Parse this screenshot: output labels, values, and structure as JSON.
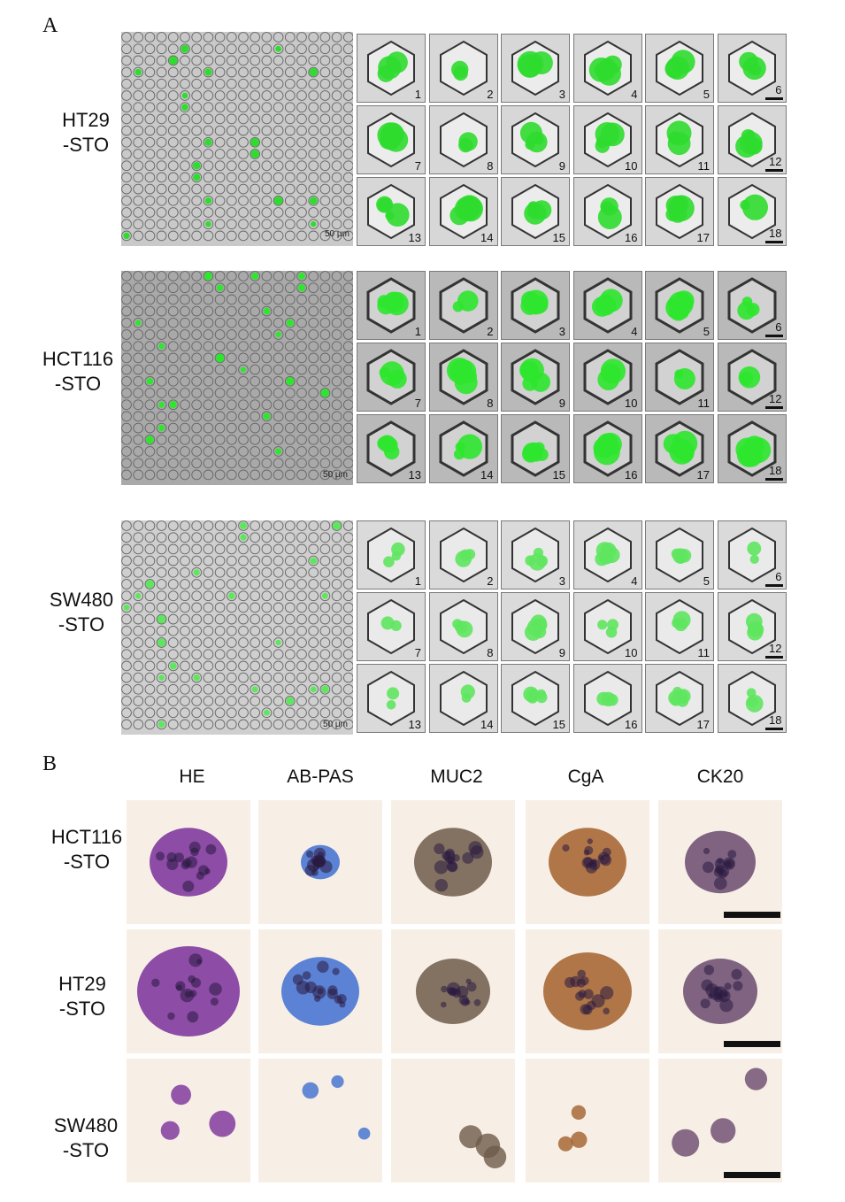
{
  "panel_a": {
    "letter": "A",
    "rows": [
      {
        "label": "HT29\n-STO",
        "scale": "50 μm",
        "tiles": [
          "1",
          "2",
          "3",
          "4",
          "5",
          "6",
          "7",
          "8",
          "9",
          "10",
          "11",
          "12",
          "13",
          "14",
          "15",
          "16",
          "17",
          "18"
        ],
        "bg": "#c9c9c9",
        "stain": "#2fdc2f"
      },
      {
        "label": "HCT116\n-STO",
        "scale": "50 μm",
        "tiles": [
          "1",
          "2",
          "3",
          "4",
          "5",
          "6",
          "7",
          "8",
          "9",
          "10",
          "11",
          "12",
          "13",
          "14",
          "15",
          "16",
          "17",
          "18"
        ],
        "bg": "#a9a9a9",
        "stain": "#2ee62e"
      },
      {
        "label": "SW480\n-STO",
        "scale": "50 μm",
        "tiles": [
          "1",
          "2",
          "3",
          "4",
          "5",
          "6",
          "7",
          "8",
          "9",
          "10",
          "11",
          "12",
          "13",
          "14",
          "15",
          "16",
          "17",
          "18"
        ],
        "bg": "#cfcfcf",
        "stain": "#5fe65f"
      }
    ]
  },
  "panel_b": {
    "letter": "B",
    "columns": [
      "HE",
      "AB-PAS",
      "MUC2",
      "CgA",
      "CK20"
    ],
    "rows": [
      "HCT116\n-STO",
      "HT29\n-STO",
      "SW480\n-STO"
    ],
    "stain_colors": [
      "#7a2f9a",
      "#3f6fd0",
      "#6e5a4a",
      "#a3602c",
      "#6a4a6e"
    ],
    "background_color": "#f7efe6"
  }
}
